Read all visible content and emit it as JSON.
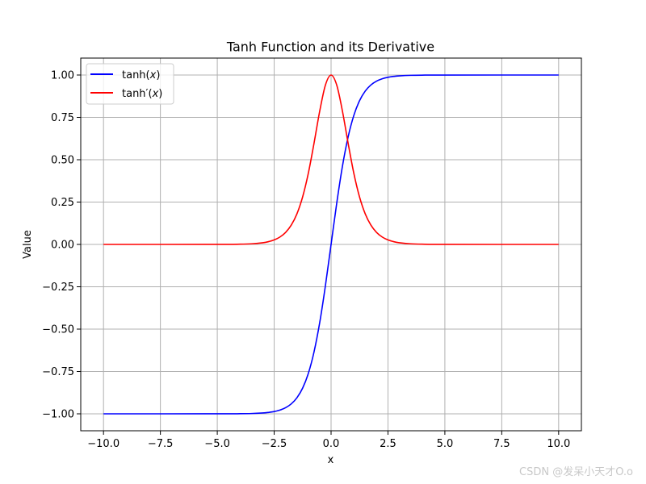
{
  "chart_data": {
    "type": "line",
    "title": "Tanh Function and its Derivative",
    "xlabel": "x",
    "ylabel": "Value",
    "xlim": [
      -11.0,
      11.0
    ],
    "ylim": [
      -1.1,
      1.1
    ],
    "xticks": [
      -10.0,
      -7.5,
      -5.0,
      -2.5,
      0.0,
      2.5,
      5.0,
      7.5,
      10.0
    ],
    "xtick_labels": [
      "−10.0",
      "−7.5",
      "−5.0",
      "−2.5",
      "0.0",
      "2.5",
      "5.0",
      "7.5",
      "10.0"
    ],
    "yticks": [
      -1.0,
      -0.75,
      -0.5,
      -0.25,
      0.0,
      0.25,
      0.5,
      0.75,
      1.0
    ],
    "ytick_labels": [
      "−1.00",
      "−0.75",
      "−0.50",
      "−0.25",
      "0.00",
      "0.25",
      "0.50",
      "0.75",
      "1.00"
    ],
    "grid": true,
    "legend_position": "upper-left",
    "series": [
      {
        "name": "tanh(x)",
        "name_main": "tanh(",
        "name_var": "x",
        "name_end": ")",
        "color": "#0000ff",
        "x": [
          -10,
          -5,
          -4,
          -3.5,
          -3,
          -2.75,
          -2.5,
          -2.25,
          -2,
          -1.75,
          -1.5,
          -1.25,
          -1,
          -0.75,
          -0.5,
          -0.25,
          0,
          0.25,
          0.5,
          0.75,
          1,
          1.25,
          1.5,
          1.75,
          2,
          2.25,
          2.5,
          2.75,
          3,
          3.5,
          4,
          5,
          10
        ],
        "y": [
          -1.0,
          -0.9999,
          -0.9993,
          -0.9982,
          -0.9951,
          -0.9918,
          -0.9866,
          -0.978,
          -0.964,
          -0.9414,
          -0.9051,
          -0.8483,
          -0.7616,
          -0.6351,
          -0.4621,
          -0.2449,
          0.0,
          0.2449,
          0.4621,
          0.6351,
          0.7616,
          0.8483,
          0.9051,
          0.9414,
          0.964,
          0.978,
          0.9866,
          0.9918,
          0.9951,
          0.9982,
          0.9993,
          0.9999,
          1.0
        ]
      },
      {
        "name": "tanh′(x)",
        "name_main": "tanh′(",
        "name_var": "x",
        "name_end": ")",
        "color": "#ff0000",
        "x": [
          -10,
          -5,
          -4,
          -3.5,
          -3,
          -2.75,
          -2.5,
          -2.25,
          -2,
          -1.75,
          -1.5,
          -1.25,
          -1,
          -0.75,
          -0.5,
          -0.25,
          0,
          0.25,
          0.5,
          0.75,
          1,
          1.25,
          1.5,
          1.75,
          2,
          2.25,
          2.5,
          2.75,
          3,
          3.5,
          4,
          5,
          10
        ],
        "y": [
          0.0,
          0.0002,
          0.0013,
          0.0036,
          0.0099,
          0.0163,
          0.0266,
          0.0435,
          0.0707,
          0.1138,
          0.1807,
          0.2804,
          0.42,
          0.5966,
          0.7864,
          0.94,
          1.0,
          0.94,
          0.7864,
          0.5966,
          0.42,
          0.2804,
          0.1807,
          0.1138,
          0.0707,
          0.0435,
          0.0266,
          0.0163,
          0.0099,
          0.0036,
          0.0013,
          0.0002,
          0.0
        ]
      }
    ]
  },
  "watermark": "CSDN @发呆小天才O.o"
}
